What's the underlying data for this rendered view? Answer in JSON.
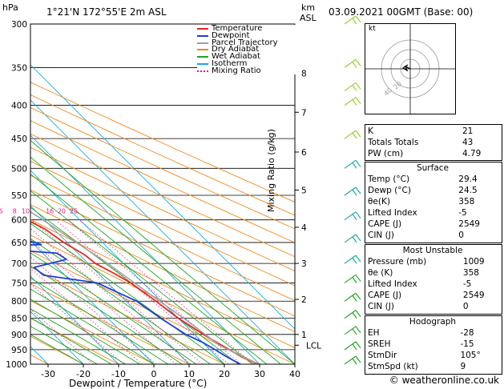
{
  "header": {
    "pressure_unit": "hPa",
    "location": "1°21'N  172°55'E  2m  ASL",
    "km_unit": "km",
    "asl_unit": "ASL",
    "datetime": "03.09.2021  00GMT  (Base: 00)"
  },
  "chart_data": {
    "type": "line",
    "title": "Skew-T log-P sounding",
    "xlabel": "Dewpoint / Temperature (°C)",
    "ylabel": "hPa",
    "right_axis_label": "Mixing Ratio (g/kg)",
    "x_ticks": [
      -30,
      -20,
      -10,
      0,
      10,
      20,
      30,
      40
    ],
    "x_tick_labels": [
      "-30",
      "-20",
      "-10",
      "0",
      "10",
      "20",
      "30",
      "40"
    ],
    "xlim": [
      -35,
      40
    ],
    "pressure_levels": [
      300,
      350,
      400,
      450,
      500,
      550,
      600,
      650,
      700,
      750,
      800,
      850,
      900,
      950,
      1000
    ],
    "pressure_labels": [
      "300",
      "350",
      "400",
      "450",
      "500",
      "550",
      "600",
      "650",
      "700",
      "750",
      "800",
      "850",
      "900",
      "950",
      "1000"
    ],
    "km_ticks": [
      {
        "label": "8",
        "p": 357
      },
      {
        "label": "7",
        "p": 410
      },
      {
        "label": "6",
        "p": 472
      },
      {
        "label": "5",
        "p": 540
      },
      {
        "label": "4",
        "p": 616
      },
      {
        "label": "3",
        "p": 700
      },
      {
        "label": "2",
        "p": 795
      },
      {
        "label": "1",
        "p": 900
      }
    ],
    "lcl_label": "LCL",
    "lcl_p": 935,
    "mixing_ratio_labels": [
      "1",
      "2",
      "3",
      "4",
      "6",
      "8",
      "10",
      "16",
      "20",
      "25"
    ],
    "mixing_ratio_values": [
      1,
      2,
      3,
      4,
      6,
      8,
      10,
      16,
      20,
      25
    ],
    "mixing_ratio_label_p": 590,
    "legend": [
      "Temperature",
      "Dewpoint",
      "Parcel Trajectory",
      "Dry Adiabat",
      "Wet Adiabat",
      "Isotherm",
      "Mixing Ratio"
    ],
    "colors": {
      "temperature": "#e8231c",
      "dewpoint": "#1a3fe0",
      "parcel": "#a0a0a0",
      "dry_adiabat": "#f08a1e",
      "wet_adiabat": "#1fa81f",
      "isotherm": "#1aa8e0",
      "mixing_ratio": "#e0198a"
    },
    "series": [
      {
        "name": "Temperature",
        "points": [
          [
            1000,
            29.4
          ],
          [
            975,
            27
          ],
          [
            950,
            25.5
          ],
          [
            925,
            24
          ],
          [
            900,
            22.5
          ],
          [
            850,
            20
          ],
          [
            800,
            18.5
          ],
          [
            750,
            16.5
          ],
          [
            725,
            14.5
          ],
          [
            700,
            12
          ],
          [
            680,
            11.5
          ],
          [
            650,
            9
          ],
          [
            620,
            7.5
          ],
          [
            600,
            5
          ],
          [
            550,
            1.5
          ],
          [
            500,
            -3.5
          ],
          [
            470,
            -7
          ],
          [
            450,
            -9.5
          ],
          [
            400,
            -17
          ],
          [
            350,
            -25
          ],
          [
            320,
            -31
          ],
          [
            300,
            -34
          ]
        ]
      },
      {
        "name": "Dewpoint",
        "points": [
          [
            1000,
            24.5
          ],
          [
            970,
            22.5
          ],
          [
            950,
            21.5
          ],
          [
            925,
            20
          ],
          [
            900,
            17.5
          ],
          [
            850,
            15
          ],
          [
            800,
            13
          ],
          [
            750,
            7
          ],
          [
            730,
            -6
          ],
          [
            710,
            -6.5
          ],
          [
            690,
            5
          ],
          [
            675,
            4
          ],
          [
            660,
            -19
          ],
          [
            655,
            2
          ],
          [
            640,
            -2
          ],
          [
            620,
            2
          ],
          [
            610,
            -1
          ],
          [
            590,
            7
          ],
          [
            585,
            -1
          ],
          [
            575,
            6
          ],
          [
            560,
            -12
          ],
          [
            530,
            -45
          ],
          [
            505,
            -16
          ],
          [
            500,
            3
          ],
          [
            490,
            -2
          ],
          [
            480,
            -4
          ],
          [
            470,
            -14
          ],
          [
            455,
            -41
          ],
          [
            440,
            -11
          ],
          [
            430,
            -12
          ],
          [
            420,
            0
          ],
          [
            410,
            0
          ],
          [
            395,
            -10
          ],
          [
            375,
            -52
          ],
          [
            345,
            -25
          ],
          [
            330,
            -31
          ],
          [
            300,
            -25
          ]
        ]
      },
      {
        "name": "Parcel Trajectory",
        "points": [
          [
            1000,
            29.4
          ],
          [
            935,
            24
          ],
          [
            900,
            23
          ],
          [
            850,
            21.5
          ],
          [
            800,
            19.5
          ],
          [
            700,
            15.5
          ],
          [
            600,
            9.5
          ],
          [
            500,
            1.5
          ],
          [
            400,
            -9
          ],
          [
            300,
            -25
          ]
        ]
      }
    ]
  },
  "wind_levels": [
    300,
    350,
    380,
    400,
    450,
    500,
    550,
    600,
    650,
    700,
    750,
    800,
    850,
    900,
    950,
    1000
  ],
  "hodograph": {
    "label": "kt",
    "ring_labels": [
      "20",
      "40"
    ]
  },
  "indices": {
    "basic": [
      {
        "label": "K",
        "value": "21"
      },
      {
        "label": "Totals Totals",
        "value": "43"
      },
      {
        "label": "PW (cm)",
        "value": "4.79"
      }
    ],
    "surface": {
      "title": "Surface",
      "rows": [
        {
          "label": "Temp (°C)",
          "value": "29.4"
        },
        {
          "label": "Dewp (°C)",
          "value": "24.5"
        },
        {
          "label": "θe(K)",
          "value": "358"
        },
        {
          "label": "Lifted Index",
          "value": "-5"
        },
        {
          "label": "CAPE (J)",
          "value": "2549"
        },
        {
          "label": "CIN (J)",
          "value": "0"
        }
      ]
    },
    "most_unstable": {
      "title": "Most Unstable",
      "rows": [
        {
          "label": "Pressure (mb)",
          "value": "1009"
        },
        {
          "label": "θe (K)",
          "value": "358"
        },
        {
          "label": "Lifted Index",
          "value": "-5"
        },
        {
          "label": "CAPE (J)",
          "value": "2549"
        },
        {
          "label": "CIN (J)",
          "value": "0"
        }
      ]
    },
    "hodograph": {
      "title": "Hodograph",
      "rows": [
        {
          "label": "EH",
          "value": "-28"
        },
        {
          "label": "SREH",
          "value": "-15"
        },
        {
          "label": "StmDir",
          "value": "105°"
        },
        {
          "label": "StmSpd (kt)",
          "value": "9"
        }
      ]
    }
  },
  "footer": {
    "copyright": "© weatheronline.co.uk"
  }
}
